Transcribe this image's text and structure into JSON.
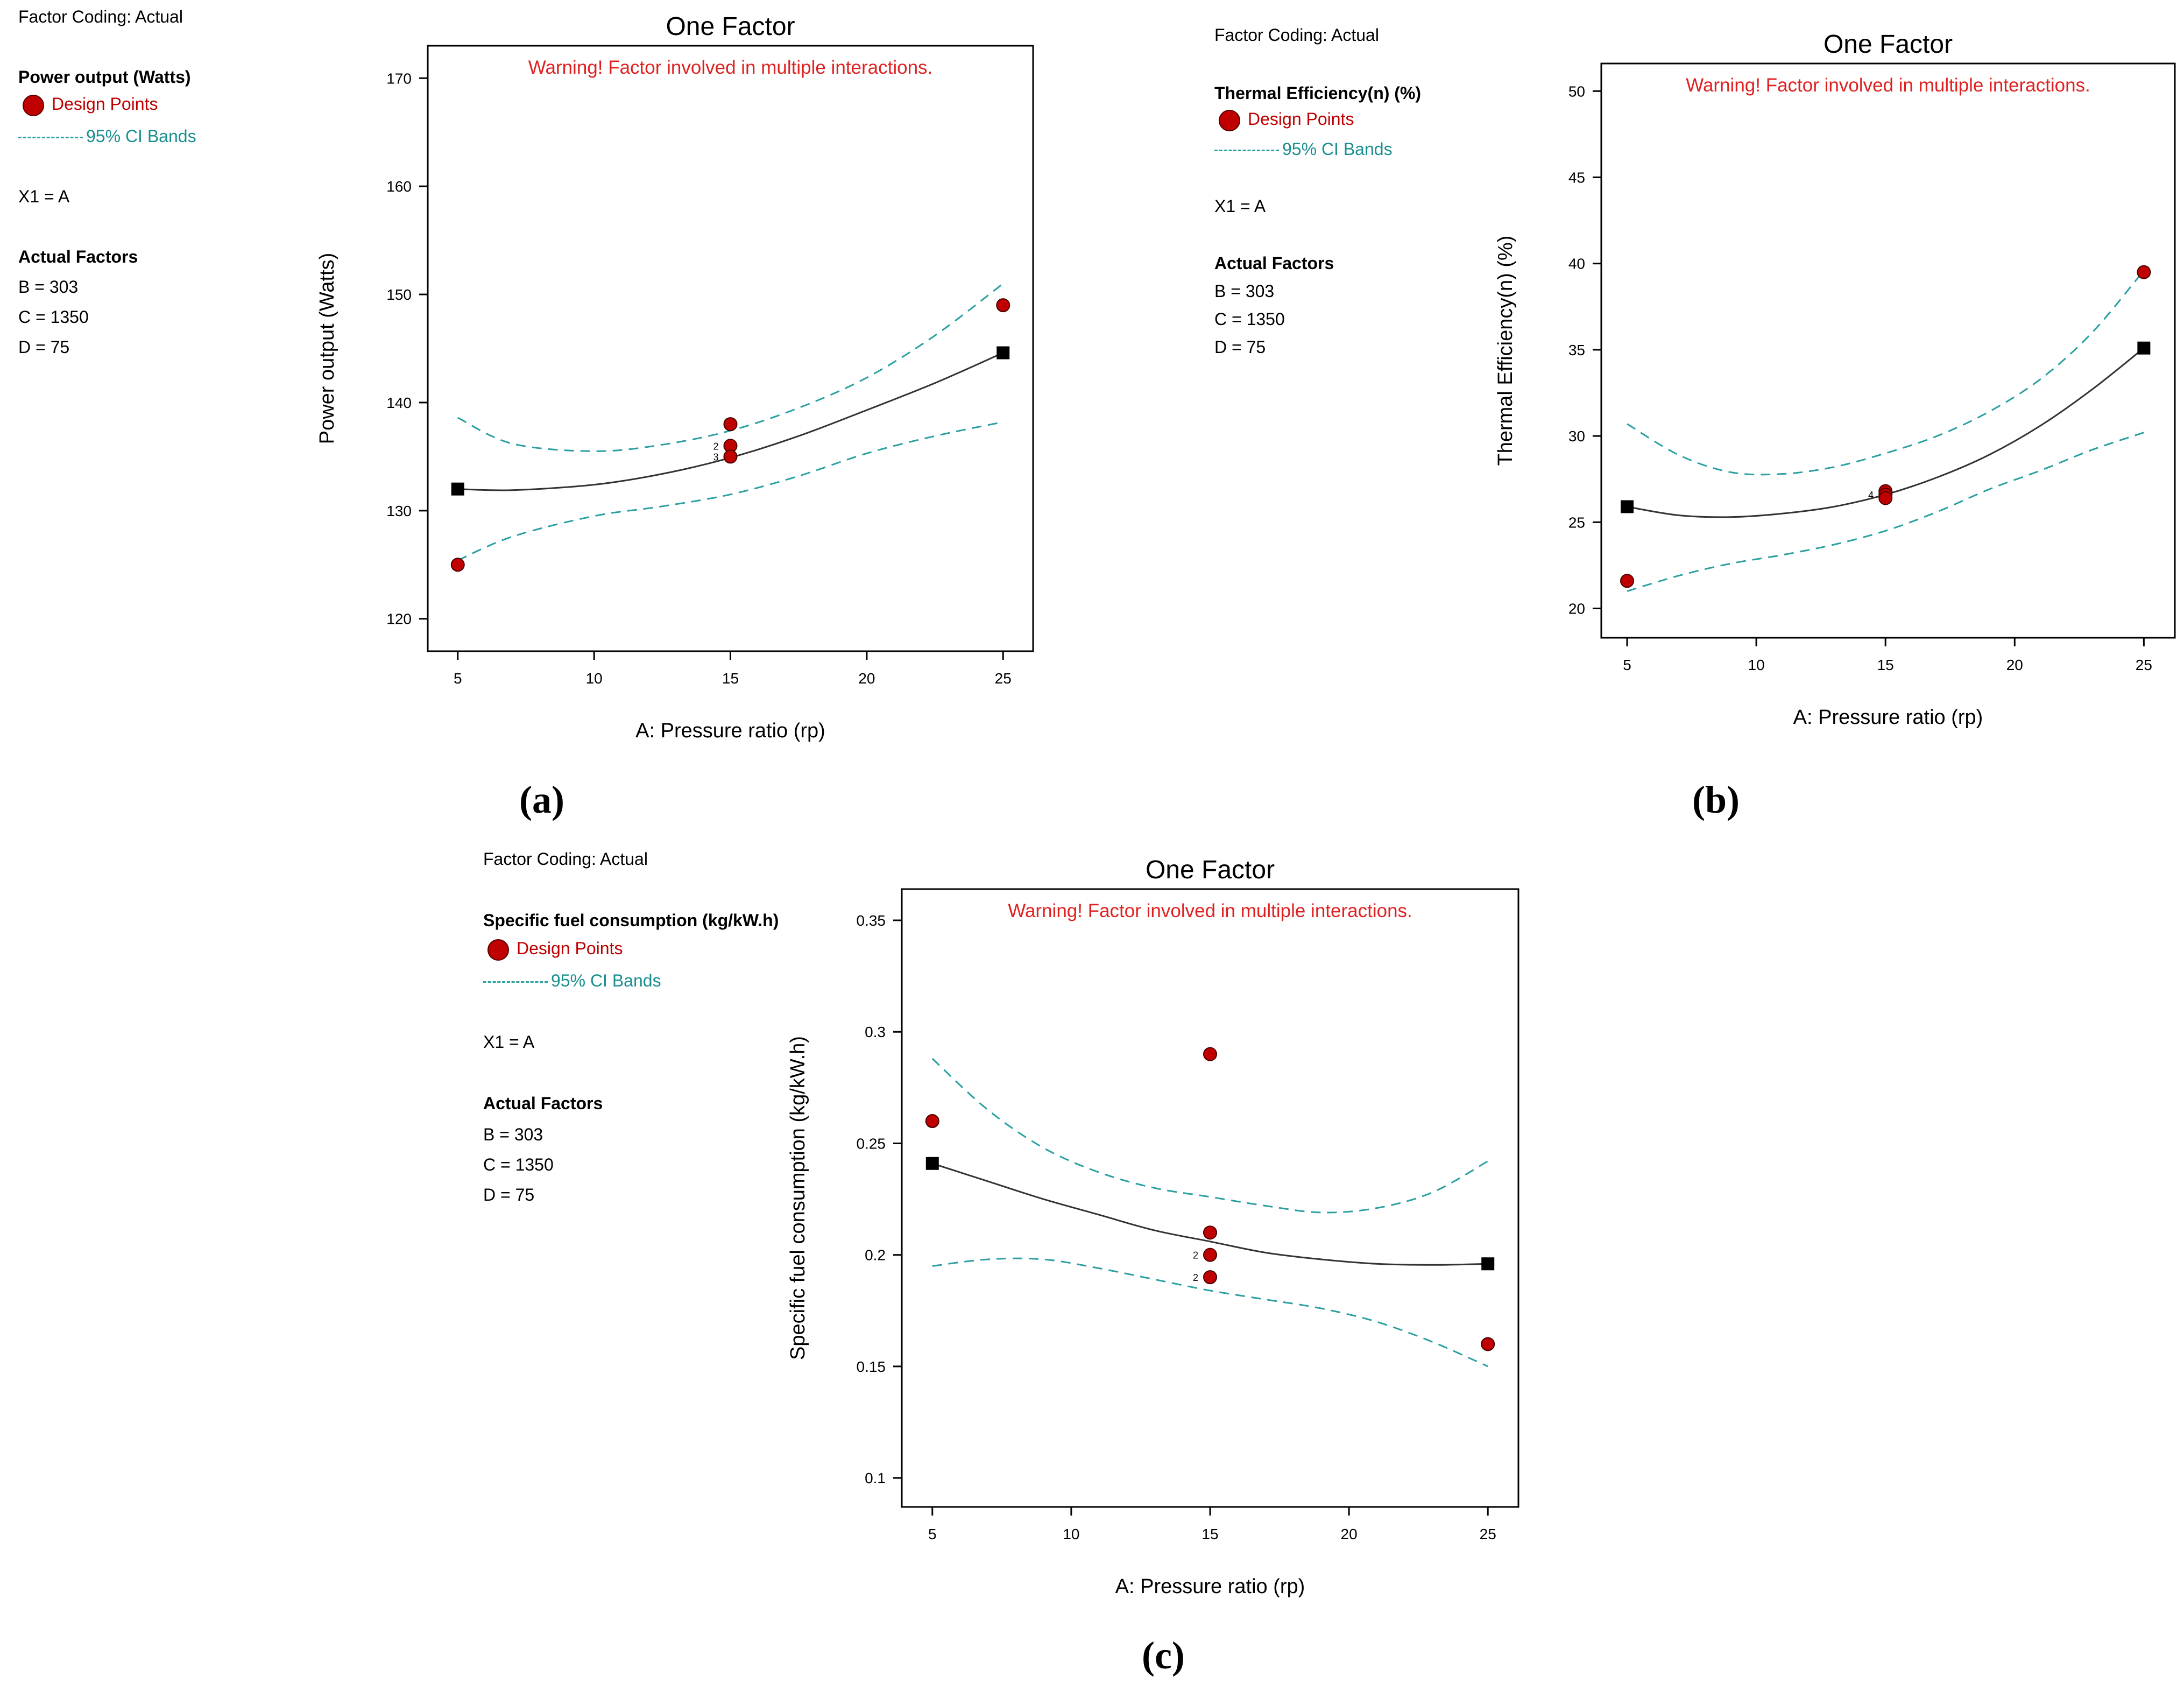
{
  "charts": [
    {
      "id": "a",
      "panel_label": "(a)",
      "legend": {
        "factor_coding": "Factor Coding: Actual",
        "response": "Power output (Watts)",
        "design_points": "Design Points",
        "ci_bands": "95% CI Bands",
        "x1": "X1 = A",
        "actual_factors": "Actual Factors",
        "b": "B = 303",
        "c": "C = 1350",
        "d": "D = 75"
      },
      "colors": {
        "points": "#c00000",
        "ci": "#2aa0a0",
        "warning": "#e02020"
      }
    },
    {
      "id": "b",
      "panel_label": "(b)",
      "legend": {
        "factor_coding": "Factor Coding: Actual",
        "response": "Thermal Efficiency(n) (%)",
        "design_points": "Design Points",
        "ci_bands": "95% CI Bands",
        "x1": "X1 = A",
        "actual_factors": "Actual Factors",
        "b": "B = 303",
        "c": "C = 1350",
        "d": "D = 75"
      }
    },
    {
      "id": "c",
      "panel_label": "(c)",
      "legend": {
        "factor_coding": "Factor Coding: Actual",
        "response": "Specific fuel consumption (kg/kW.h)",
        "design_points": "Design Points",
        "ci_bands": "95% CI Bands",
        "x1": "X1 = A",
        "actual_factors": "Actual Factors",
        "b": "B = 303",
        "c": "C = 1350",
        "d": "D = 75"
      }
    }
  ],
  "chart_data": [
    {
      "type": "line",
      "title": "One Factor",
      "annotation": "Warning! Factor involved in multiple interactions.",
      "xlabel": "A: Pressure ratio (rp)",
      "ylabel": "Power output (Watts)",
      "xlim": [
        3.9,
        26.1
      ],
      "ylim": [
        117,
        173
      ],
      "xticks": [
        5,
        10,
        15,
        20,
        25
      ],
      "xtick_labels": [
        "5",
        "10",
        "15",
        "20",
        "25"
      ],
      "yticks": [
        120,
        130,
        140,
        150,
        160,
        170
      ],
      "ytick_labels": [
        "120",
        "130",
        "140",
        "150",
        "160",
        "170"
      ],
      "fit": {
        "x": [
          5,
          7,
          10,
          12.5,
          15,
          17.5,
          20,
          22.5,
          25
        ],
        "y": [
          132,
          131.9,
          132.4,
          133.4,
          134.9,
          136.9,
          139.3,
          141.8,
          144.6
        ]
      },
      "ci_upper": {
        "x": [
          5,
          7,
          10,
          12.5,
          15,
          17.5,
          20,
          22.5,
          25
        ],
        "y": [
          138.6,
          136.2,
          135.5,
          136.1,
          137.4,
          139.5,
          142.3,
          146.2,
          151.0
        ]
      },
      "ci_lower": {
        "x": [
          5,
          7,
          10,
          12.5,
          15,
          17.5,
          20,
          22.5,
          25
        ],
        "y": [
          125.4,
          127.6,
          129.5,
          130.4,
          131.5,
          133.2,
          135.3,
          136.9,
          138.2
        ]
      },
      "design_points": {
        "x": [
          5,
          15,
          15,
          15,
          25
        ],
        "y": [
          125,
          138,
          136,
          135,
          149
        ]
      },
      "replicate_labels": [
        {
          "x": 15,
          "y": 136,
          "label": "2"
        },
        {
          "x": 15,
          "y": 135,
          "label": "3"
        }
      ],
      "endpoints": {
        "x": [
          5,
          25
        ],
        "y": [
          132,
          144.6
        ]
      }
    },
    {
      "type": "line",
      "title": "One Factor",
      "annotation": "Warning! Factor involved in multiple interactions.",
      "xlabel": "A: Pressure ratio (rp)",
      "ylabel": "Thermal Efficiency(n) (%)",
      "xlim": [
        4,
        26.2
      ],
      "ylim": [
        18.3,
        51.6
      ],
      "xticks": [
        5,
        10,
        15,
        20,
        25
      ],
      "xtick_labels": [
        "5",
        "10",
        "15",
        "20",
        "25"
      ],
      "yticks": [
        20,
        25,
        30,
        35,
        40,
        45,
        50
      ],
      "ytick_labels": [
        "20",
        "25",
        "30",
        "35",
        "40",
        "45",
        "50"
      ],
      "fit": {
        "x": [
          5,
          7,
          9,
          11,
          13,
          15,
          17,
          19,
          21,
          23,
          25
        ],
        "y": [
          25.9,
          25.4,
          25.3,
          25.5,
          25.9,
          26.6,
          27.6,
          28.9,
          30.6,
          32.7,
          35.1
        ]
      },
      "ci_upper": {
        "x": [
          5,
          7,
          9,
          11,
          13,
          15,
          17,
          19,
          21,
          23,
          25
        ],
        "y": [
          30.7,
          28.9,
          27.9,
          27.8,
          28.2,
          29.0,
          30.0,
          31.4,
          33.3,
          36.0,
          39.6
        ]
      },
      "ci_lower": {
        "x": [
          5,
          7,
          9,
          11,
          13,
          15,
          17,
          19,
          21,
          23,
          25
        ],
        "y": [
          21.0,
          21.9,
          22.6,
          23.1,
          23.7,
          24.5,
          25.6,
          26.9,
          28.0,
          29.2,
          30.2
        ]
      },
      "design_points": {
        "x": [
          5,
          15,
          15,
          15,
          25
        ],
        "y": [
          21.6,
          26.8,
          26.6,
          26.4,
          39.5
        ]
      },
      "replicate_labels": [
        {
          "x": 15,
          "y": 26.6,
          "label": "4"
        }
      ],
      "endpoints": {
        "x": [
          5,
          25
        ],
        "y": [
          25.9,
          35.1
        ]
      }
    },
    {
      "type": "line",
      "title": "One Factor",
      "annotation": "Warning! Factor involved in multiple interactions.",
      "xlabel": "A: Pressure ratio (rp)",
      "ylabel": "Specific fuel consumption (kg/kW.h)",
      "xlim": [
        3.9,
        26.1
      ],
      "ylim": [
        0.087,
        0.364
      ],
      "xticks": [
        5,
        10,
        15,
        20,
        25
      ],
      "xtick_labels": [
        "5",
        "10",
        "15",
        "20",
        "25"
      ],
      "yticks": [
        0.1,
        0.15,
        0.2,
        0.25,
        0.3,
        0.35
      ],
      "ytick_labels": [
        "0.1",
        "0.15",
        "0.2",
        "0.25",
        "0.3",
        "0.35"
      ],
      "fit": {
        "x": [
          5,
          7,
          9,
          11,
          13,
          15,
          17,
          19,
          21,
          23,
          25
        ],
        "y": [
          0.241,
          0.233,
          0.225,
          0.218,
          0.211,
          0.206,
          0.201,
          0.198,
          0.196,
          0.1955,
          0.196
        ]
      },
      "ci_upper": {
        "x": [
          5,
          7,
          9,
          11,
          13,
          15,
          17,
          19,
          21,
          23,
          25
        ],
        "y": [
          0.288,
          0.265,
          0.248,
          0.237,
          0.23,
          0.226,
          0.222,
          0.219,
          0.221,
          0.228,
          0.242
        ]
      },
      "ci_lower": {
        "x": [
          5,
          7,
          9,
          11,
          13,
          15,
          17,
          19,
          21,
          23,
          25
        ],
        "y": [
          0.195,
          0.198,
          0.198,
          0.194,
          0.189,
          0.184,
          0.18,
          0.176,
          0.17,
          0.161,
          0.15
        ]
      },
      "design_points": {
        "x": [
          5,
          15,
          15,
          15,
          15,
          25
        ],
        "y": [
          0.26,
          0.29,
          0.21,
          0.2,
          0.19,
          0.16
        ]
      },
      "replicate_labels": [
        {
          "x": 15,
          "y": 0.2,
          "label": "2"
        },
        {
          "x": 15,
          "y": 0.19,
          "label": "2"
        }
      ],
      "endpoints": {
        "x": [
          5,
          25
        ],
        "y": [
          0.241,
          0.196
        ]
      }
    }
  ]
}
